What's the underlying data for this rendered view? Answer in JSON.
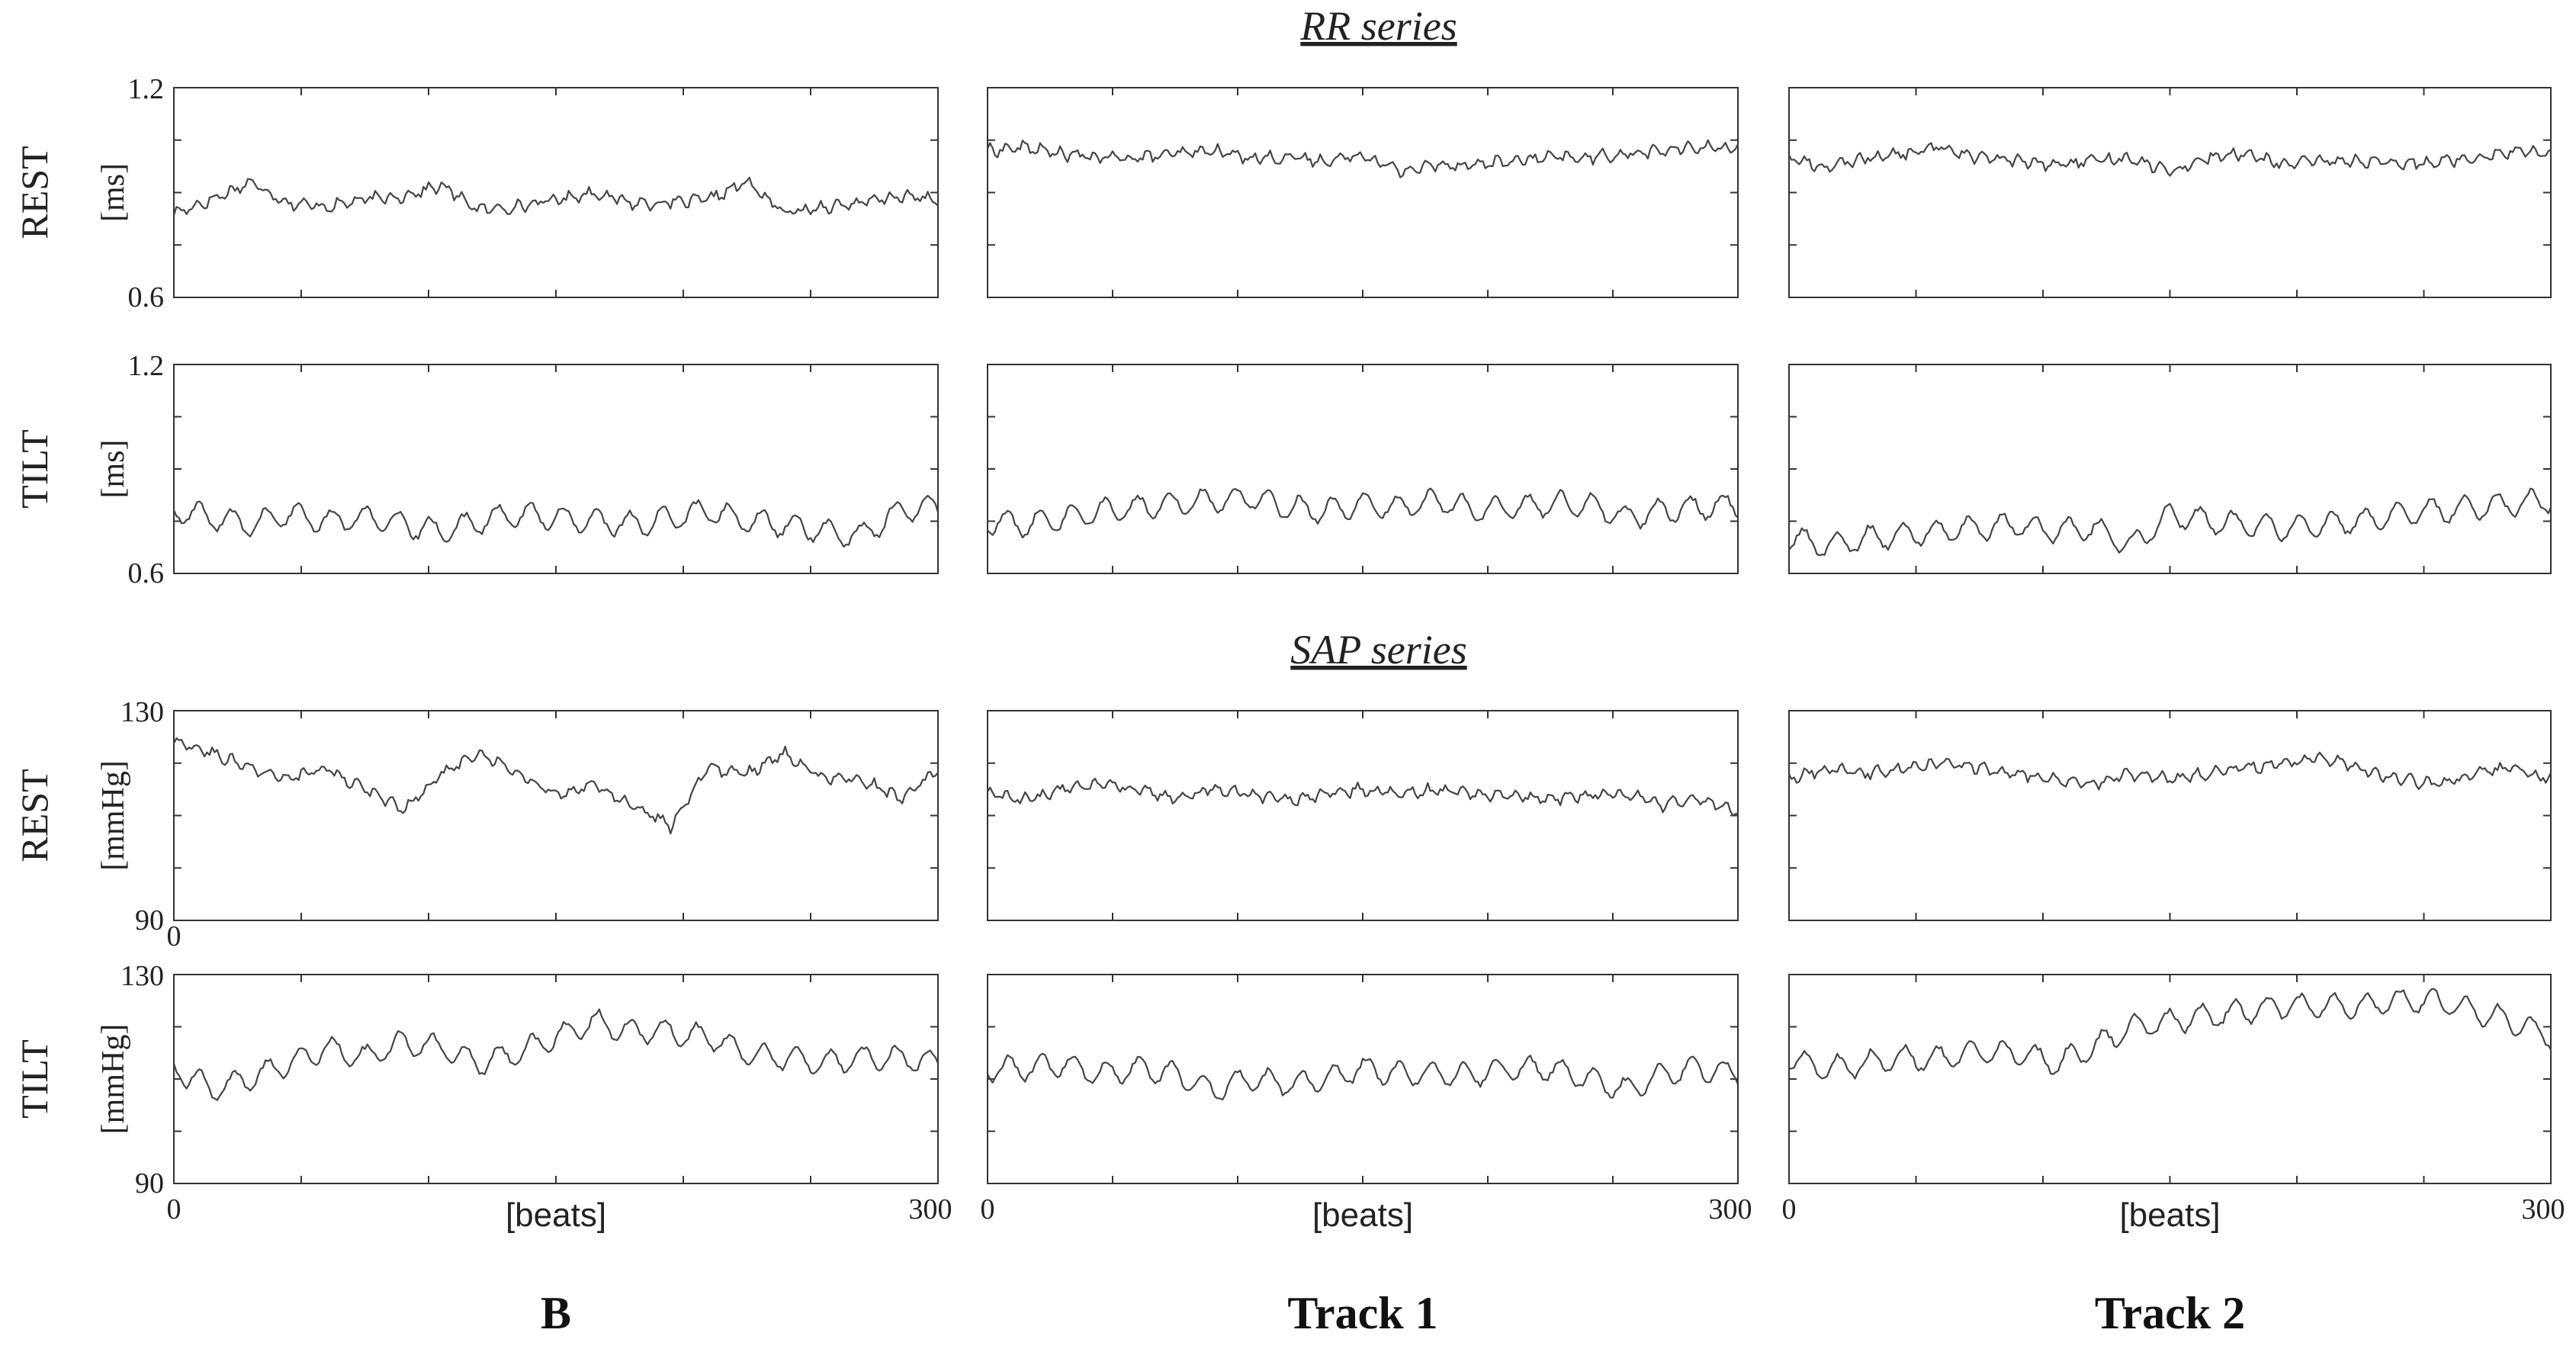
{
  "sections": [
    {
      "title": "RR series"
    },
    {
      "title": "SAP series"
    }
  ],
  "columns": [
    "B",
    "Track 1",
    "Track 2"
  ],
  "rows": [
    {
      "condition": "REST",
      "unit": "[ms]",
      "ymin_label": "0.6",
      "ymax_label": "1.2",
      "ylim": [
        0.6,
        1.2
      ]
    },
    {
      "condition": "TILT",
      "unit": "[ms]",
      "ymin_label": "0.6",
      "ymax_label": "1.2",
      "ylim": [
        0.6,
        1.2
      ]
    },
    {
      "condition": "REST",
      "unit": "[mmHg]",
      "ymin_label": "90",
      "ymax_label": "130",
      "ylim": [
        90,
        130
      ]
    },
    {
      "condition": "TILT",
      "unit": "[mmHg]",
      "ymin_label": "90",
      "ymax_label": "130",
      "ylim": [
        90,
        130
      ]
    }
  ],
  "x_axis": {
    "label": "[beats]",
    "min_label": "0",
    "max_label": "300",
    "xlim": [
      0,
      300
    ],
    "extra_zero_label": "0"
  },
  "line_color": "#444444",
  "chart_data": [
    {
      "type": "line",
      "panel": "RR-REST-B",
      "xlim": [
        0,
        300
      ],
      "ylim": [
        0.6,
        1.2
      ],
      "x": [
        0,
        15,
        30,
        45,
        60,
        75,
        90,
        105,
        120,
        135,
        150,
        165,
        180,
        195,
        210,
        225,
        240,
        255,
        270,
        285,
        300
      ],
      "values": [
        0.84,
        0.88,
        0.93,
        0.87,
        0.86,
        0.88,
        0.89,
        0.92,
        0.85,
        0.86,
        0.88,
        0.9,
        0.87,
        0.87,
        0.88,
        0.93,
        0.84,
        0.86,
        0.87,
        0.89,
        0.88
      ]
    },
    {
      "type": "line",
      "panel": "RR-REST-Track1",
      "xlim": [
        0,
        300
      ],
      "ylim": [
        0.6,
        1.2
      ],
      "x": [
        0,
        15,
        30,
        45,
        60,
        75,
        90,
        105,
        120,
        135,
        150,
        165,
        180,
        195,
        210,
        225,
        240,
        255,
        270,
        285,
        300
      ],
      "values": [
        1.02,
        1.03,
        1.01,
        1.0,
        1.0,
        1.01,
        1.02,
        1.0,
        1.0,
        0.99,
        1.01,
        0.96,
        0.98,
        0.98,
        0.99,
        1.0,
        1.0,
        1.01,
        1.02,
        1.03,
        1.03
      ]
    },
    {
      "type": "line",
      "panel": "RR-REST-Track2",
      "xlim": [
        0,
        300
      ],
      "ylim": [
        0.6,
        1.2
      ],
      "x": [
        0,
        15,
        30,
        45,
        60,
        75,
        90,
        105,
        120,
        135,
        150,
        165,
        180,
        195,
        210,
        225,
        240,
        255,
        270,
        285,
        300
      ],
      "values": [
        1.0,
        0.97,
        1.0,
        1.01,
        1.03,
        1.0,
        0.99,
        0.98,
        0.99,
        1.0,
        0.96,
        1.0,
        1.01,
        0.98,
        0.99,
        0.99,
        0.98,
        0.99,
        1.0,
        1.02,
        1.01
      ]
    },
    {
      "type": "line",
      "panel": "RR-TILT-B",
      "xlim": [
        0,
        300
      ],
      "ylim": [
        0.6,
        1.2
      ],
      "x": [
        0,
        15,
        30,
        45,
        60,
        75,
        90,
        105,
        120,
        135,
        150,
        165,
        180,
        195,
        210,
        225,
        240,
        255,
        270,
        285,
        300
      ],
      "values": [
        0.78,
        0.76,
        0.74,
        0.77,
        0.75,
        0.76,
        0.74,
        0.72,
        0.75,
        0.77,
        0.76,
        0.75,
        0.74,
        0.76,
        0.78,
        0.75,
        0.74,
        0.72,
        0.71,
        0.78,
        0.79
      ]
    },
    {
      "type": "line",
      "panel": "RR-TILT-Track1",
      "xlim": [
        0,
        300
      ],
      "ylim": [
        0.6,
        1.2
      ],
      "x": [
        0,
        15,
        30,
        45,
        60,
        75,
        90,
        105,
        120,
        135,
        150,
        165,
        180,
        195,
        210,
        225,
        240,
        255,
        270,
        285,
        300
      ],
      "values": [
        0.75,
        0.74,
        0.76,
        0.78,
        0.79,
        0.8,
        0.81,
        0.82,
        0.79,
        0.78,
        0.8,
        0.79,
        0.81,
        0.78,
        0.79,
        0.8,
        0.8,
        0.76,
        0.78,
        0.79,
        0.8
      ]
    },
    {
      "type": "line",
      "panel": "RR-TILT-Track2",
      "xlim": [
        0,
        300
      ],
      "ylim": [
        0.6,
        1.2
      ],
      "x": [
        0,
        15,
        30,
        45,
        60,
        75,
        90,
        105,
        120,
        135,
        150,
        165,
        180,
        195,
        210,
        225,
        240,
        255,
        270,
        285,
        300
      ],
      "values": [
        0.7,
        0.68,
        0.7,
        0.71,
        0.72,
        0.73,
        0.74,
        0.72,
        0.73,
        0.68,
        0.77,
        0.75,
        0.74,
        0.73,
        0.74,
        0.75,
        0.77,
        0.78,
        0.79,
        0.8,
        0.81
      ]
    },
    {
      "type": "line",
      "panel": "SAP-REST-B",
      "xlim": [
        0,
        300
      ],
      "ylim": [
        90,
        130
      ],
      "x": [
        0,
        15,
        30,
        45,
        60,
        75,
        90,
        105,
        120,
        135,
        150,
        165,
        180,
        195,
        210,
        225,
        240,
        255,
        270,
        285,
        300
      ],
      "values": [
        124,
        122,
        119,
        117,
        119,
        115,
        111,
        118,
        122,
        118,
        114,
        116,
        112,
        108,
        119,
        118,
        122,
        117,
        117,
        113,
        119
      ]
    },
    {
      "type": "line",
      "panel": "SAP-REST-Track1",
      "xlim": [
        0,
        300
      ],
      "ylim": [
        90,
        130
      ],
      "x": [
        0,
        15,
        30,
        45,
        60,
        75,
        90,
        105,
        120,
        135,
        150,
        165,
        180,
        195,
        210,
        225,
        240,
        255,
        270,
        285,
        300
      ],
      "values": [
        114,
        113,
        115,
        116,
        115,
        113,
        115,
        114,
        113,
        114,
        115,
        114,
        115,
        114,
        114,
        113,
        114,
        114,
        112,
        113,
        111
      ]
    },
    {
      "type": "line",
      "panel": "SAP-REST-Track2",
      "xlim": [
        0,
        300
      ],
      "ylim": [
        90,
        130
      ],
      "x": [
        0,
        15,
        30,
        45,
        60,
        75,
        90,
        105,
        120,
        135,
        150,
        165,
        180,
        195,
        210,
        225,
        240,
        255,
        270,
        285,
        300
      ],
      "values": [
        117,
        119,
        118,
        119,
        120,
        119,
        118,
        117,
        116,
        118,
        117,
        118,
        119,
        120,
        121,
        119,
        117,
        116,
        118,
        119,
        117
      ]
    },
    {
      "type": "line",
      "panel": "SAP-TILT-B",
      "xlim": [
        0,
        300
      ],
      "ylim": [
        90,
        130
      ],
      "x": [
        0,
        15,
        30,
        45,
        60,
        75,
        90,
        105,
        120,
        135,
        150,
        165,
        180,
        195,
        210,
        225,
        240,
        255,
        270,
        285,
        300
      ],
      "values": [
        112,
        108,
        110,
        113,
        116,
        114,
        117,
        116,
        113,
        115,
        118,
        121,
        119,
        119,
        118,
        115,
        114,
        113,
        114,
        114,
        113
      ]
    },
    {
      "type": "line",
      "panel": "SAP-TILT-Track1",
      "xlim": [
        0,
        300
      ],
      "ylim": [
        90,
        130
      ],
      "x": [
        0,
        15,
        30,
        45,
        60,
        75,
        90,
        105,
        120,
        135,
        150,
        165,
        180,
        195,
        210,
        225,
        240,
        255,
        270,
        285,
        300
      ],
      "values": [
        112,
        112,
        113,
        111,
        112,
        111,
        108,
        110,
        109,
        110,
        112,
        111,
        111,
        111,
        112,
        112,
        110,
        108,
        111,
        112,
        111
      ]
    },
    {
      "type": "line",
      "panel": "SAP-TILT-Track2",
      "xlim": [
        0,
        300
      ],
      "ylim": [
        90,
        130
      ],
      "x": [
        0,
        15,
        30,
        45,
        60,
        75,
        90,
        105,
        120,
        135,
        150,
        165,
        180,
        195,
        210,
        225,
        240,
        255,
        270,
        285,
        300
      ],
      "values": [
        114,
        112,
        113,
        114,
        114,
        115,
        115,
        113,
        116,
        120,
        121,
        122,
        123,
        124,
        124,
        124,
        125,
        125,
        123,
        121,
        118
      ]
    }
  ]
}
